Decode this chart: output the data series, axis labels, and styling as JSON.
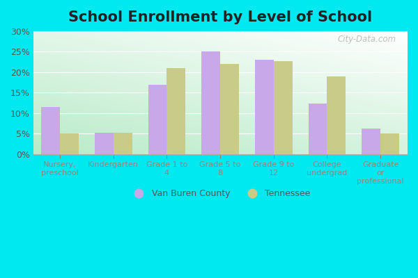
{
  "title": "School Enrollment by Level of School",
  "categories": [
    "Nursery,\npreschool",
    "Kindergarten",
    "Grade 1 to\n4",
    "Grade 5 to\n8",
    "Grade 9 to\n12",
    "College\nundergrad",
    "Graduate\nor\nprofessional"
  ],
  "van_buren": [
    11.5,
    5.3,
    17.0,
    25.0,
    23.0,
    12.3,
    6.2
  ],
  "tennessee": [
    5.0,
    5.2,
    21.0,
    22.0,
    22.7,
    19.0,
    5.0
  ],
  "bar_color_vb": "#c8a8e8",
  "bar_color_tn": "#c8cc88",
  "background_outer": "#00e8f0",
  "background_plot_topleft": "#e0f0e8",
  "background_plot_botleft": "#b8e8c8",
  "background_plot_topright": "#f8fef8",
  "ylim": [
    0,
    30
  ],
  "yticks": [
    0,
    5,
    10,
    15,
    20,
    25,
    30
  ],
  "ytick_labels": [
    "0%",
    "5%",
    "10%",
    "15%",
    "20%",
    "25%",
    "30%"
  ],
  "legend_vb": "Van Buren County",
  "legend_tn": "Tennessee",
  "title_fontsize": 15,
  "watermark": "City-Data.com"
}
